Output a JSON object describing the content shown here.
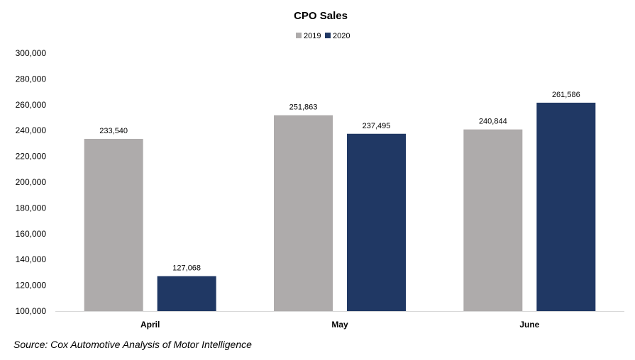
{
  "chart_data": {
    "type": "bar",
    "title": "CPO Sales",
    "categories": [
      "April",
      "May",
      "June"
    ],
    "series": [
      {
        "name": "2019",
        "color": "#AEABAB",
        "values": [
          233540,
          251863,
          240844
        ]
      },
      {
        "name": "2020",
        "color": "#203864",
        "values": [
          127068,
          237495,
          261586
        ]
      }
    ],
    "ylim": [
      100000,
      300000
    ],
    "yticks": [
      100000,
      120000,
      140000,
      160000,
      180000,
      200000,
      220000,
      240000,
      260000,
      280000,
      300000
    ],
    "ytick_labels": [
      "100,000",
      "120,000",
      "140,000",
      "160,000",
      "180,000",
      "200,000",
      "220,000",
      "240,000",
      "260,000",
      "280,000",
      "300,000"
    ],
    "data_labels": [
      [
        "233,540",
        "251,863",
        "240,844"
      ],
      [
        "127,068",
        "237,495",
        "261,586"
      ]
    ],
    "grid": false,
    "legend_position": "top-center"
  },
  "source": "Source: Cox Automotive Analysis of Motor Intelligence"
}
